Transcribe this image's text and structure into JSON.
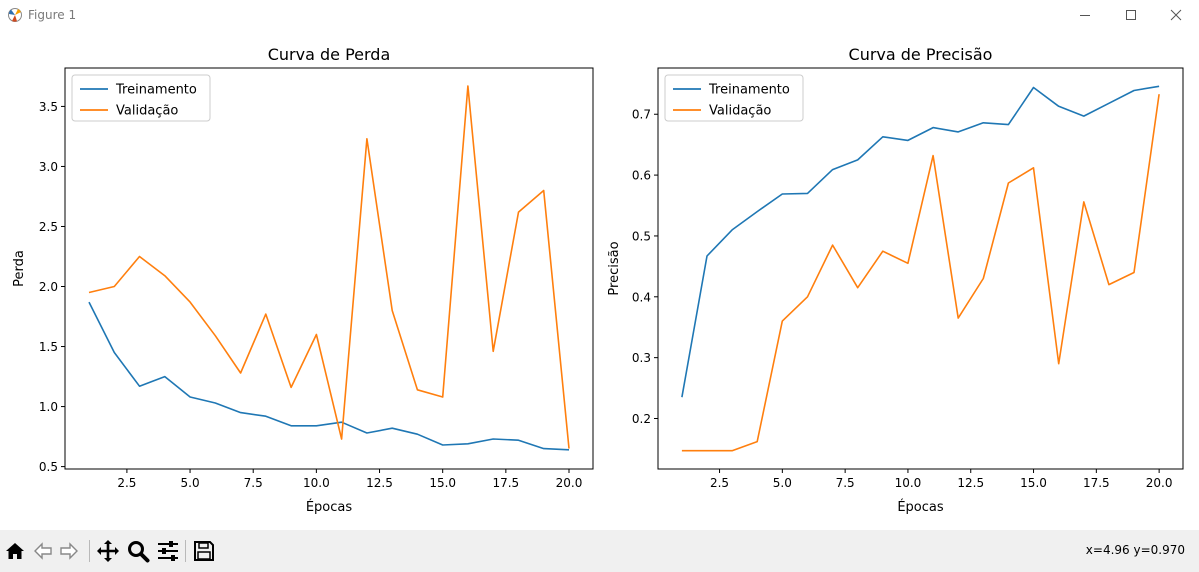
{
  "window": {
    "title": "Figure 1",
    "minimize_icon": "minimize-icon",
    "maximize_icon": "maximize-icon",
    "close_icon": "close-icon"
  },
  "toolbar": {
    "buttons": [
      "home-icon",
      "back-icon",
      "forward-icon",
      "pan-icon",
      "zoom-icon",
      "configure-subplots-icon",
      "save-icon"
    ],
    "coords": "x=4.96 y=0.970"
  },
  "colors": {
    "train": "#1f77b4",
    "val": "#ff7f0e"
  },
  "chart_data": [
    {
      "type": "line",
      "title": "Curva de Perda",
      "xlabel": "Épocas",
      "ylabel": "Perda",
      "x": [
        1,
        2,
        3,
        4,
        5,
        6,
        7,
        8,
        9,
        10,
        11,
        12,
        13,
        14,
        15,
        16,
        17,
        18,
        19,
        20
      ],
      "xlim": [
        0.05,
        20.95
      ],
      "ylim": [
        0.48,
        3.82
      ],
      "xticks": [
        2.5,
        5.0,
        7.5,
        10.0,
        12.5,
        15.0,
        17.5,
        20.0
      ],
      "xtick_labels": [
        "2.5",
        "5.0",
        "7.5",
        "10.0",
        "12.5",
        "15.0",
        "17.5",
        "20.0"
      ],
      "yticks": [
        0.5,
        1.0,
        1.5,
        2.0,
        2.5,
        3.0,
        3.5
      ],
      "ytick_labels": [
        "0.5",
        "1.0",
        "1.5",
        "2.0",
        "2.5",
        "3.0",
        "3.5"
      ],
      "grid": false,
      "legend": "top-left",
      "series": [
        {
          "name": "Treinamento",
          "values": [
            1.87,
            1.45,
            1.17,
            1.25,
            1.08,
            1.03,
            0.95,
            0.92,
            0.84,
            0.84,
            0.87,
            0.78,
            0.82,
            0.77,
            0.68,
            0.69,
            0.73,
            0.72,
            0.65,
            0.64
          ]
        },
        {
          "name": "Validação",
          "values": [
            1.95,
            2.0,
            2.25,
            2.09,
            1.87,
            1.59,
            1.28,
            1.77,
            1.16,
            1.6,
            0.73,
            3.23,
            1.8,
            1.14,
            1.08,
            3.67,
            1.46,
            2.62,
            2.8,
            0.65
          ]
        }
      ]
    },
    {
      "type": "line",
      "title": "Curva de Precisão",
      "xlabel": "Épocas",
      "ylabel": "Precisão",
      "x": [
        1,
        2,
        3,
        4,
        5,
        6,
        7,
        8,
        9,
        10,
        11,
        12,
        13,
        14,
        15,
        16,
        17,
        18,
        19,
        20
      ],
      "xlim": [
        0.05,
        20.95
      ],
      "ylim": [
        0.117,
        0.776
      ],
      "xticks": [
        2.5,
        5.0,
        7.5,
        10.0,
        12.5,
        15.0,
        17.5,
        20.0
      ],
      "xtick_labels": [
        "2.5",
        "5.0",
        "7.5",
        "10.0",
        "12.5",
        "15.0",
        "17.5",
        "20.0"
      ],
      "yticks": [
        0.2,
        0.3,
        0.4,
        0.5,
        0.6,
        0.7
      ],
      "ytick_labels": [
        "0.2",
        "0.3",
        "0.4",
        "0.5",
        "0.6",
        "0.7"
      ],
      "grid": false,
      "legend": "top-left",
      "series": [
        {
          "name": "Treinamento",
          "values": [
            0.235,
            0.467,
            0.51,
            0.54,
            0.569,
            0.57,
            0.609,
            0.625,
            0.663,
            0.657,
            0.678,
            0.671,
            0.686,
            0.683,
            0.744,
            0.713,
            0.697,
            0.718,
            0.739,
            0.746
          ]
        },
        {
          "name": "Validação",
          "values": [
            0.147,
            0.147,
            0.147,
            0.162,
            0.36,
            0.4,
            0.485,
            0.415,
            0.475,
            0.455,
            0.632,
            0.365,
            0.43,
            0.587,
            0.612,
            0.29,
            0.556,
            0.42,
            0.44,
            0.733
          ]
        }
      ]
    }
  ]
}
